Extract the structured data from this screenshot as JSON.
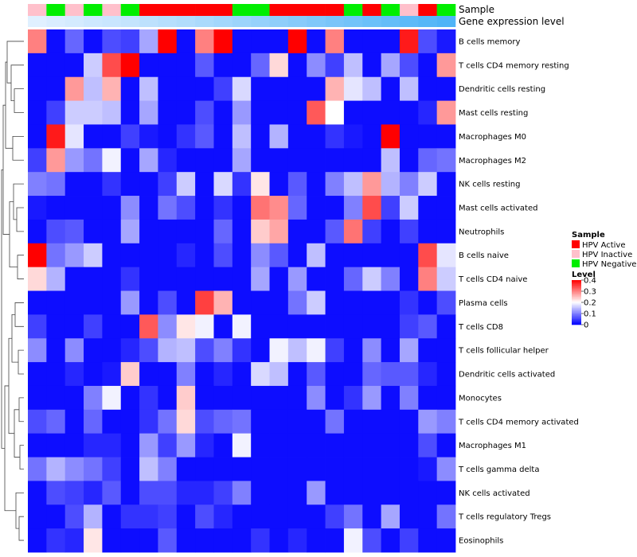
{
  "chart_data": {
    "type": "heatmap",
    "annotation_track_labels": [
      "Sample",
      "Gene expression level"
    ],
    "legend": {
      "sample_title": "Sample",
      "sample_entries": [
        {
          "label": "HPV Active",
          "color": "#ff0000"
        },
        {
          "label": "HPV Inactive",
          "color": "#ffc0cb"
        },
        {
          "label": "HPV Negative",
          "color": "#00ee00"
        }
      ],
      "level_title": "Level",
      "level_ticks": [
        "0.4",
        "0.3",
        "0.2",
        "0.1",
        "0"
      ],
      "level_range": [
        0,
        0.4
      ]
    },
    "color_scale": {
      "low": "#0000ff",
      "mid": "#ffffff",
      "high": "#ff0000",
      "mid_value": 0.2
    },
    "columns": [
      {
        "sample": "HPV Inactive",
        "expression": 0.0
      },
      {
        "sample": "HPV Negative",
        "expression": 0.03
      },
      {
        "sample": "HPV Inactive",
        "expression": 0.05
      },
      {
        "sample": "HPV Negative",
        "expression": 0.08
      },
      {
        "sample": "HPV Inactive",
        "expression": 0.1
      },
      {
        "sample": "HPV Negative",
        "expression": 0.12
      },
      {
        "sample": "HPV Active",
        "expression": 0.15
      },
      {
        "sample": "HPV Active",
        "expression": 0.18
      },
      {
        "sample": "HPV Active",
        "expression": 0.2
      },
      {
        "sample": "HPV Active",
        "expression": 0.23
      },
      {
        "sample": "HPV Active",
        "expression": 0.26
      },
      {
        "sample": "HPV Negative",
        "expression": 0.29
      },
      {
        "sample": "HPV Negative",
        "expression": 0.32
      },
      {
        "sample": "HPV Active",
        "expression": 0.35
      },
      {
        "sample": "HPV Active",
        "expression": 0.38
      },
      {
        "sample": "HPV Active",
        "expression": 0.41
      },
      {
        "sample": "HPV Active",
        "expression": 0.44
      },
      {
        "sample": "HPV Negative",
        "expression": 0.47
      },
      {
        "sample": "HPV Active",
        "expression": 0.5
      },
      {
        "sample": "HPV Negative",
        "expression": 0.53
      },
      {
        "sample": "HPV Inactive",
        "expression": 0.56
      },
      {
        "sample": "HPV Active",
        "expression": 0.59
      },
      {
        "sample": "HPV Negative",
        "expression": 0.62
      }
    ],
    "rows": [
      {
        "name": "B cells memory",
        "values": [
          0.3,
          0.01,
          0.08,
          0.01,
          0.06,
          0.05,
          0.13,
          0.4,
          0.01,
          0.3,
          0.4,
          0.01,
          0.01,
          0.01,
          0.4,
          0.01,
          0.3,
          0.01,
          0.01,
          0.01,
          0.38,
          0.06,
          0.02
        ]
      },
      {
        "name": "T cells CD4 memory resting",
        "values": [
          0.01,
          0.01,
          0.01,
          0.16,
          0.34,
          0.4,
          0.01,
          0.01,
          0.01,
          0.07,
          0.01,
          0.01,
          0.08,
          0.23,
          0.01,
          0.11,
          0.05,
          0.15,
          0.01,
          0.13,
          0.06,
          0.01,
          0.28
        ]
      },
      {
        "name": "Dendritic cells resting",
        "values": [
          0.01,
          0.01,
          0.28,
          0.15,
          0.26,
          0.01,
          0.15,
          0.01,
          0.01,
          0.01,
          0.05,
          0.17,
          0.01,
          0.01,
          0.01,
          0.01,
          0.26,
          0.18,
          0.15,
          0.01,
          0.15,
          0.01,
          0.01
        ]
      },
      {
        "name": "Mast cells resting",
        "values": [
          0.01,
          0.05,
          0.16,
          0.16,
          0.15,
          0.01,
          0.13,
          0.01,
          0.01,
          0.06,
          0.01,
          0.12,
          0.01,
          0.01,
          0.01,
          0.33,
          0.2,
          0.01,
          0.01,
          0.01,
          0.01,
          0.03,
          0.28
        ]
      },
      {
        "name": "Macrophages M0",
        "values": [
          0.01,
          0.38,
          0.18,
          0.01,
          0.01,
          0.05,
          0.02,
          0.01,
          0.04,
          0.07,
          0.01,
          0.15,
          0.01,
          0.14,
          0.01,
          0.01,
          0.04,
          0.02,
          0.01,
          0.4,
          0.01,
          0.01,
          0.01
        ]
      },
      {
        "name": "Macrophages M2",
        "values": [
          0.05,
          0.28,
          0.12,
          0.09,
          0.19,
          0.01,
          0.13,
          0.03,
          0.01,
          0.01,
          0.01,
          0.13,
          0.01,
          0.01,
          0.01,
          0.01,
          0.01,
          0.01,
          0.01,
          0.15,
          0.01,
          0.08,
          0.09
        ]
      },
      {
        "name": "NK cells resting",
        "values": [
          0.1,
          0.09,
          0.01,
          0.01,
          0.04,
          0.01,
          0.01,
          0.05,
          0.16,
          0.01,
          0.17,
          0.04,
          0.22,
          0.01,
          0.07,
          0.01,
          0.1,
          0.15,
          0.28,
          0.14,
          0.1,
          0.16,
          0.01
        ]
      },
      {
        "name": "Mast cells activated",
        "values": [
          0.02,
          0.01,
          0.01,
          0.01,
          0.01,
          0.11,
          0.01,
          0.09,
          0.06,
          0.01,
          0.04,
          0.01,
          0.31,
          0.29,
          0.08,
          0.01,
          0.01,
          0.1,
          0.34,
          0.05,
          0.16,
          0.01,
          0.01
        ]
      },
      {
        "name": "Neutrophils",
        "values": [
          0.01,
          0.06,
          0.07,
          0.01,
          0.01,
          0.13,
          0.01,
          0.01,
          0.01,
          0.01,
          0.08,
          0.01,
          0.24,
          0.27,
          0.01,
          0.01,
          0.07,
          0.31,
          0.05,
          0.01,
          0.05,
          0.01,
          0.01
        ]
      },
      {
        "name": "B cells naive",
        "values": [
          0.4,
          0.09,
          0.12,
          0.16,
          0.01,
          0.01,
          0.01,
          0.01,
          0.03,
          0.01,
          0.06,
          0.01,
          0.11,
          0.07,
          0.01,
          0.15,
          0.01,
          0.01,
          0.01,
          0.01,
          0.01,
          0.34,
          0.18
        ]
      },
      {
        "name": "T cells CD4 naive",
        "values": [
          0.23,
          0.14,
          0.01,
          0.01,
          0.01,
          0.04,
          0.01,
          0.01,
          0.01,
          0.01,
          0.01,
          0.01,
          0.13,
          0.01,
          0.12,
          0.01,
          0.01,
          0.08,
          0.16,
          0.1,
          0.01,
          0.3,
          0.16
        ]
      },
      {
        "name": "Plasma cells",
        "values": [
          0.01,
          0.01,
          0.01,
          0.01,
          0.01,
          0.12,
          0.01,
          0.06,
          0.01,
          0.35,
          0.26,
          0.01,
          0.01,
          0.01,
          0.09,
          0.16,
          0.01,
          0.01,
          0.01,
          0.01,
          0.04,
          0.01,
          0.06
        ]
      },
      {
        "name": "T cells CD8",
        "values": [
          0.05,
          0.01,
          0.01,
          0.05,
          0.01,
          0.01,
          0.33,
          0.11,
          0.22,
          0.19,
          0.01,
          0.19,
          0.01,
          0.01,
          0.01,
          0.01,
          0.01,
          0.01,
          0.01,
          0.01,
          0.05,
          0.07,
          0.01
        ]
      },
      {
        "name": "T cells follicular helper",
        "values": [
          0.11,
          0.01,
          0.11,
          0.01,
          0.01,
          0.03,
          0.06,
          0.14,
          0.15,
          0.06,
          0.1,
          0.04,
          0.01,
          0.19,
          0.15,
          0.19,
          0.05,
          0.01,
          0.11,
          0.01,
          0.13,
          0.01,
          0.01
        ]
      },
      {
        "name": "Dendritic cells activated",
        "values": [
          0.01,
          0.01,
          0.03,
          0.01,
          0.02,
          0.24,
          0.01,
          0.01,
          0.1,
          0.01,
          0.03,
          0.01,
          0.17,
          0.15,
          0.01,
          0.07,
          0.01,
          0.01,
          0.08,
          0.07,
          0.07,
          0.03,
          0.01
        ]
      },
      {
        "name": "Monocytes",
        "values": [
          0.01,
          0.01,
          0.01,
          0.1,
          0.19,
          0.01,
          0.04,
          0.01,
          0.24,
          0.01,
          0.01,
          0.01,
          0.01,
          0.01,
          0.01,
          0.11,
          0.01,
          0.04,
          0.12,
          0.01,
          0.1,
          0.01,
          0.01
        ]
      },
      {
        "name": "T cells CD4 memory activated",
        "values": [
          0.06,
          0.08,
          0.01,
          0.08,
          0.01,
          0.01,
          0.04,
          0.09,
          0.23,
          0.06,
          0.08,
          0.09,
          0.01,
          0.01,
          0.01,
          0.01,
          0.09,
          0.01,
          0.01,
          0.01,
          0.01,
          0.12,
          0.1
        ]
      },
      {
        "name": "Macrophages M1",
        "values": [
          0.01,
          0.01,
          0.01,
          0.03,
          0.03,
          0.01,
          0.12,
          0.05,
          0.12,
          0.03,
          0.01,
          0.19,
          0.01,
          0.01,
          0.01,
          0.01,
          0.01,
          0.01,
          0.01,
          0.01,
          0.01,
          0.06,
          0.01
        ]
      },
      {
        "name": "T cells gamma delta",
        "values": [
          0.09,
          0.14,
          0.11,
          0.09,
          0.05,
          0.01,
          0.15,
          0.1,
          0.01,
          0.01,
          0.01,
          0.01,
          0.01,
          0.01,
          0.01,
          0.01,
          0.01,
          0.01,
          0.01,
          0.01,
          0.01,
          0.02,
          0.11
        ]
      },
      {
        "name": "NK cells activated",
        "values": [
          0.01,
          0.06,
          0.05,
          0.03,
          0.07,
          0.01,
          0.06,
          0.06,
          0.03,
          0.03,
          0.05,
          0.1,
          0.01,
          0.01,
          0.01,
          0.12,
          0.01,
          0.01,
          0.01,
          0.01,
          0.01,
          0.01,
          0.01
        ]
      },
      {
        "name": "T cells regulatory  Tregs",
        "values": [
          0.01,
          0.01,
          0.06,
          0.14,
          0.01,
          0.04,
          0.04,
          0.05,
          0.01,
          0.06,
          0.03,
          0.01,
          0.01,
          0.01,
          0.01,
          0.01,
          0.05,
          0.09,
          0.01,
          0.13,
          0.01,
          0.01,
          0.09
        ]
      },
      {
        "name": "Eosinophils",
        "values": [
          0.01,
          0.04,
          0.03,
          0.22,
          0.01,
          0.01,
          0.01,
          0.07,
          0.01,
          0.01,
          0.01,
          0.01,
          0.04,
          0.01,
          0.03,
          0.01,
          0.01,
          0.19,
          0.06,
          0.01,
          0.05,
          0.01,
          0.01
        ]
      }
    ]
  }
}
